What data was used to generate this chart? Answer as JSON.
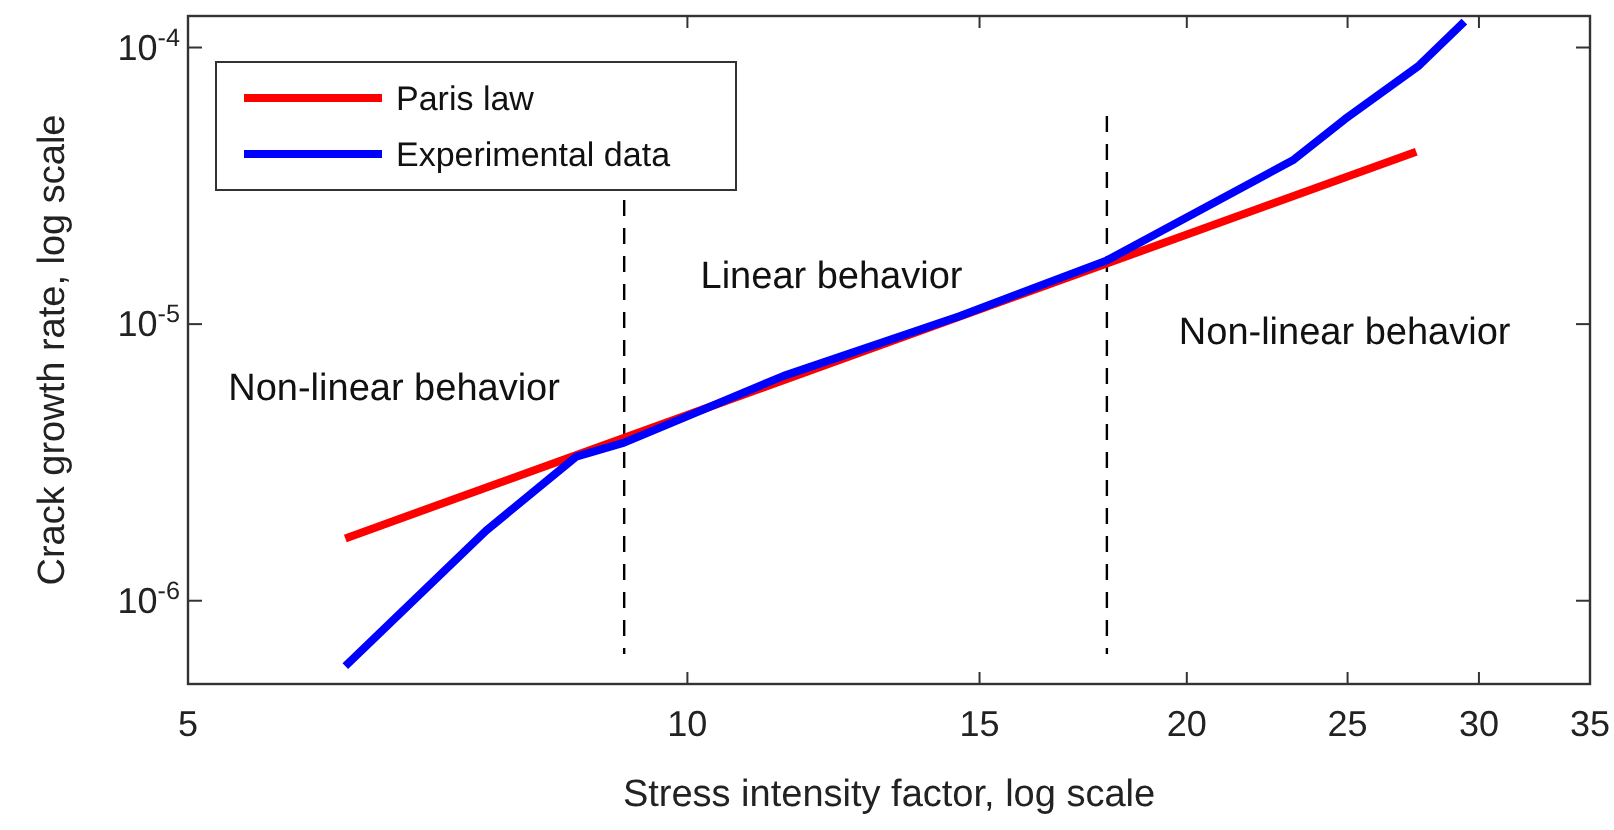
{
  "chart_data": {
    "type": "line",
    "xlabel": "Stress intensity factor, log scale",
    "ylabel": "Crack growth rate, log scale",
    "log": "xy",
    "xlim": [
      5,
      35
    ],
    "xticks": [
      5,
      10,
      15,
      20,
      25,
      30,
      35
    ],
    "ylim": [
      5e-07,
      0.00013
    ],
    "yticks": [
      {
        "value": 1e-06,
        "label": "10$^{-6}$"
      },
      {
        "value": 1e-05,
        "label": "10$^{-5}$"
      },
      {
        "value": 0.0001,
        "label": "10$^{-4}$"
      }
    ],
    "grid": false,
    "legend": "top left",
    "line_style": "solid",
    "marker": "none",
    "series": [
      {
        "name": "Paris law",
        "color": "#ff0000",
        "x": [
          6.22,
          27.5
        ],
        "values": [
          1.68e-06,
          4.2e-05
        ]
      },
      {
        "name": "Experimental data",
        "color": "#0000ff",
        "x": [
          6.22,
          7.56,
          8.57,
          9.16,
          11.43,
          14.6,
          17.9,
          23.2,
          24.9,
          27.6,
          29.4
        ],
        "values": [
          5.8e-07,
          1.79e-06,
          3.32e-06,
          3.73e-06,
          6.5e-06,
          1.07e-05,
          1.7e-05,
          3.93e-05,
          5.5e-05,
          8.6e-05,
          0.000124
        ]
      }
    ],
    "ref_lines": [
      {
        "axis": "x",
        "value": 9.16,
        "color": "#000000",
        "line_style": "dashed"
      },
      {
        "axis": "x",
        "value": 17.9,
        "color": "#000000",
        "line_style": "dashed"
      }
    ],
    "annotations": [
      "Non-linear behavior",
      "Linear behavior",
      "Non-linear behavior"
    ]
  }
}
